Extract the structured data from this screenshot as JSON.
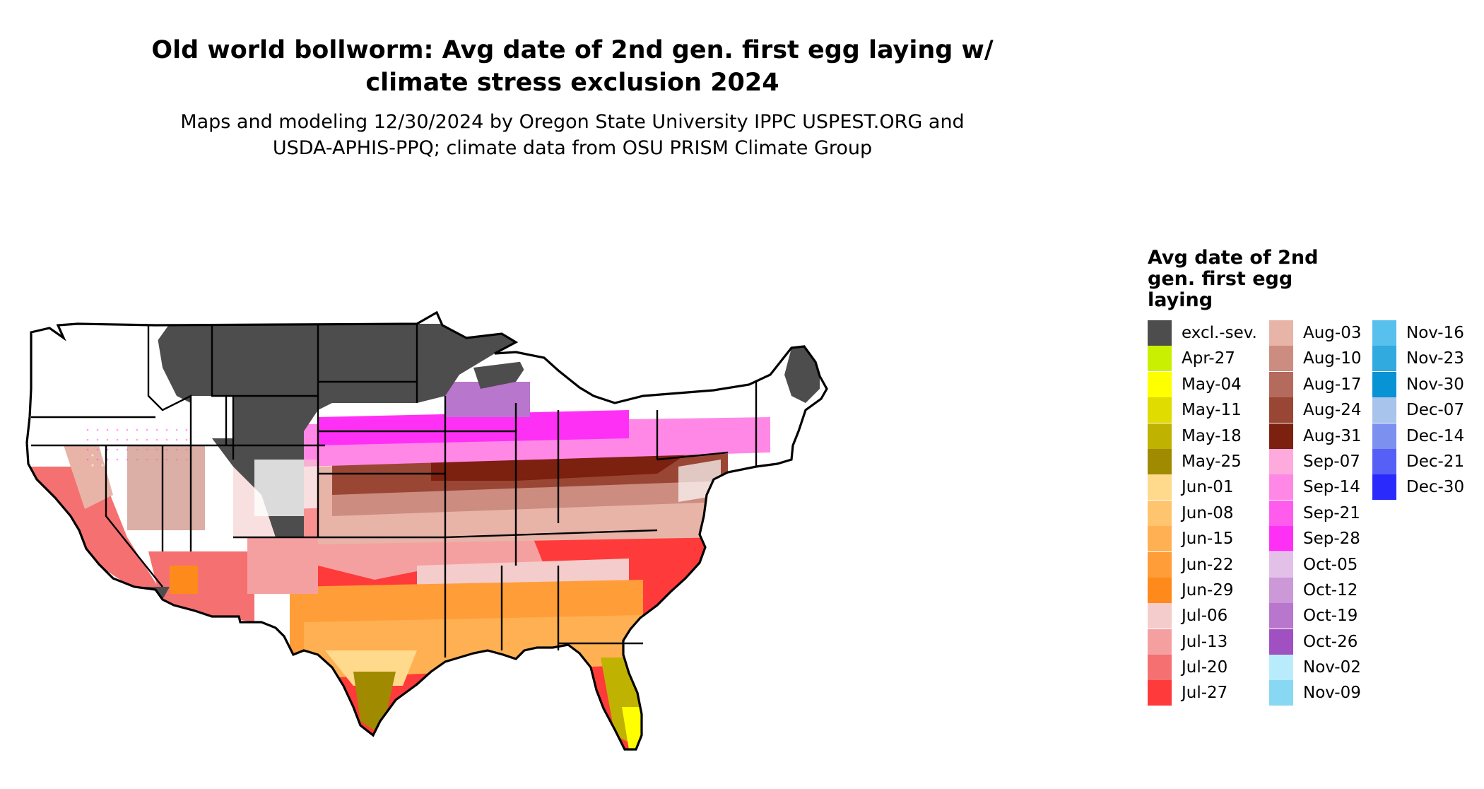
{
  "title_line1": "Old world bollworm: Avg date of 2nd gen. first egg laying w/",
  "title_line2": "climate stress exclusion 2024",
  "subtitle_line1": "Maps and modeling 12/30/2024 by Oregon State University IPPC USPEST.ORG and",
  "subtitle_line2": "USDA-APHIS-PPQ; climate data from OSU PRISM Climate Group",
  "legend": {
    "title_lines": [
      "Avg date of 2nd",
      "gen. first egg",
      "laying"
    ],
    "columns": [
      [
        {
          "label": "excl.-sev.",
          "color": "#4d4d4d"
        },
        {
          "label": "Apr-27",
          "color": "#c8f000"
        },
        {
          "label": "May-04",
          "color": "#ffff00"
        },
        {
          "label": "May-11",
          "color": "#e0dc00"
        },
        {
          "label": "May-18",
          "color": "#c0b200"
        },
        {
          "label": "May-25",
          "color": "#a08a00"
        },
        {
          "label": "Jun-01",
          "color": "#ffd98c"
        },
        {
          "label": "Jun-08",
          "color": "#ffc56e"
        },
        {
          "label": "Jun-15",
          "color": "#ffb052"
        },
        {
          "label": "Jun-22",
          "color": "#ff9d38"
        },
        {
          "label": "Jun-29",
          "color": "#ff8a1c"
        },
        {
          "label": "Jul-06",
          "color": "#f5cccc"
        },
        {
          "label": "Jul-13",
          "color": "#f5a0a0"
        },
        {
          "label": "Jul-20",
          "color": "#f57070"
        },
        {
          "label": "Jul-27",
          "color": "#ff3a3a"
        }
      ],
      [
        {
          "label": "Aug-03",
          "color": "#e8b4a8"
        },
        {
          "label": "Aug-10",
          "color": "#cc8c80"
        },
        {
          "label": "Aug-17",
          "color": "#b46a5c"
        },
        {
          "label": "Aug-24",
          "color": "#9a4634"
        },
        {
          "label": "Aug-31",
          "color": "#7c2010"
        },
        {
          "label": "Sep-07",
          "color": "#ffaadc"
        },
        {
          "label": "Sep-14",
          "color": "#ff88e6"
        },
        {
          "label": "Sep-21",
          "color": "#ff5cee"
        },
        {
          "label": "Sep-28",
          "color": "#ff30f6"
        },
        {
          "label": "Oct-05",
          "color": "#e2c0e8"
        },
        {
          "label": "Oct-12",
          "color": "#cc98d8"
        },
        {
          "label": "Oct-19",
          "color": "#b876cc"
        },
        {
          "label": "Oct-26",
          "color": "#a050c0"
        },
        {
          "label": "Nov-02",
          "color": "#b8ecfc"
        },
        {
          "label": "Nov-09",
          "color": "#88d8f4"
        }
      ],
      [
        {
          "label": "Nov-16",
          "color": "#58c0ec"
        },
        {
          "label": "Nov-23",
          "color": "#30aadf"
        },
        {
          "label": "Nov-30",
          "color": "#0894d4"
        },
        {
          "label": "Dec-07",
          "color": "#a8c4ec"
        },
        {
          "label": "Dec-14",
          "color": "#7c90f0"
        },
        {
          "label": "Dec-21",
          "color": "#5660f6"
        },
        {
          "label": "Dec-30",
          "color": "#2a2afc"
        }
      ]
    ]
  }
}
